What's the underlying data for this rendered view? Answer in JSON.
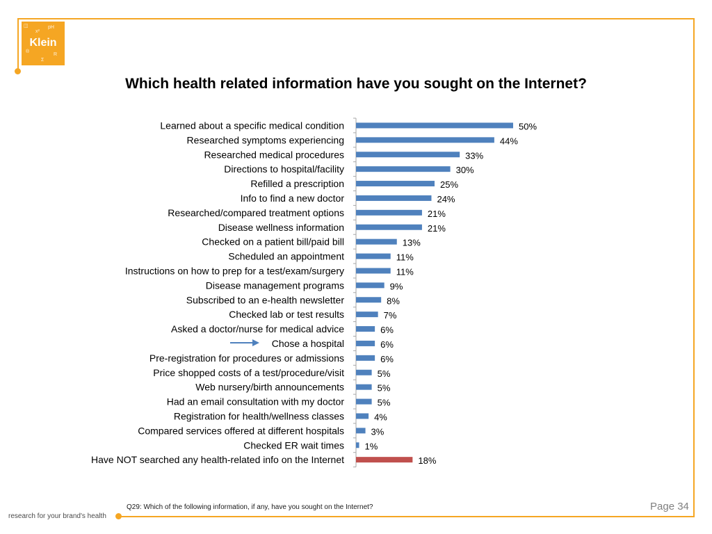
{
  "brand": {
    "logo_text": "Klein",
    "tagline": "research for your brand's health",
    "accent_color": "#f5a623"
  },
  "page": {
    "number_label": "Page 34",
    "footnote": "Q29: Which of the following information, if any, have you sought on the Internet?"
  },
  "chart_data": {
    "type": "bar",
    "orientation": "horizontal",
    "title": "Which health related information have you sought on the Internet?",
    "xlabel": "",
    "ylabel": "",
    "xlim": [
      0,
      50
    ],
    "grid": false,
    "value_suffix": "%",
    "categories": [
      "Learned about a specific medical condition",
      "Researched symptoms experiencing",
      "Researched medical procedures",
      "Directions to hospital/facility",
      "Refilled a prescription",
      "Info to find a new doctor",
      "Researched/compared treatment options",
      "Disease wellness information",
      "Checked on a patient bill/paid bill",
      "Scheduled an appointment",
      "Instructions on how to prep for a test/exam/surgery",
      "Disease management programs",
      "Subscribed to an e-health newsletter",
      "Checked lab or test results",
      "Asked a doctor/nurse for medical advice",
      "Chose a hospital",
      "Pre-registration for procedures or admissions",
      "Price shopped costs of a test/procedure/visit",
      "Web nursery/birth announcements",
      "Had an email consultation with my doctor",
      "Registration for health/wellness classes",
      "Compared services offered at different hospitals",
      "Checked ER wait times",
      "Have NOT searched any health-related info on the Internet"
    ],
    "values": [
      50,
      44,
      33,
      30,
      25,
      24,
      21,
      21,
      13,
      11,
      11,
      9,
      8,
      7,
      6,
      6,
      6,
      5,
      5,
      5,
      4,
      3,
      1,
      18
    ],
    "highlighted_category": "Chose a hospital",
    "colors": {
      "bar": "#4f81bd",
      "bar_negative": "#c0504d",
      "arrow": "#4f81bd"
    }
  }
}
